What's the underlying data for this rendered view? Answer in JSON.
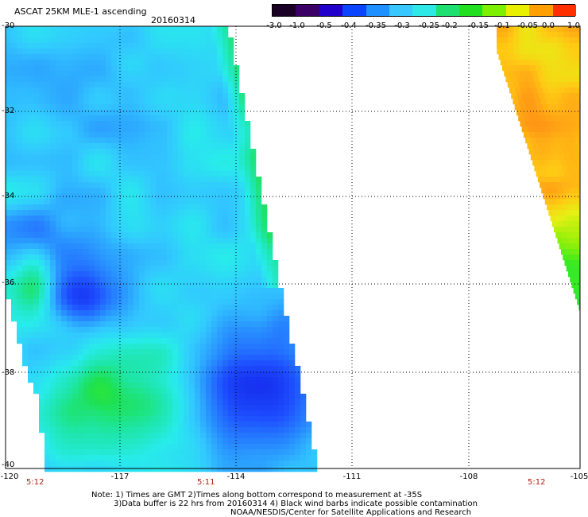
{
  "title": "ASCAT 25KM MLE-1 ascending",
  "date": "20160314",
  "colorbar": {
    "ticks": [
      "-3.0",
      "-1.0",
      "-0.5",
      "-0.4",
      "-0.35",
      "-0.3",
      "-0.25",
      "-0.2",
      "-0.15",
      "-0.1",
      "-0.05",
      "0.0",
      "1.0"
    ],
    "colors": [
      "#1a0024",
      "#3a0066",
      "#2200cc",
      "#0a44ff",
      "#1e90ff",
      "#38c8ff",
      "#2ee8e8",
      "#1ee070",
      "#22e020",
      "#7cf000",
      "#e8f000",
      "#ffa000",
      "#ff3000"
    ]
  },
  "axes": {
    "y_labels": [
      "-30",
      "-32",
      "-34",
      "-36",
      "-38",
      "-40"
    ],
    "x_labels": [
      "-120",
      "-117",
      "-114",
      "-111",
      "-108",
      "-105"
    ],
    "lat_range": [
      -40,
      -30
    ],
    "lon_range": [
      -120,
      -105
    ]
  },
  "times": [
    "5:12",
    "5:11",
    "5:12"
  ],
  "notes": {
    "line1": "Note: 1) Times are GMT 2)Times along bottom correspond to measurement at -35S",
    "line2": "3)Data buffer is 22 hrs from 20160314 4) Black wind barbs indicate possible contamination",
    "line3": "NOAA/NESDIS/Center for Satellite Applications and Research"
  }
}
